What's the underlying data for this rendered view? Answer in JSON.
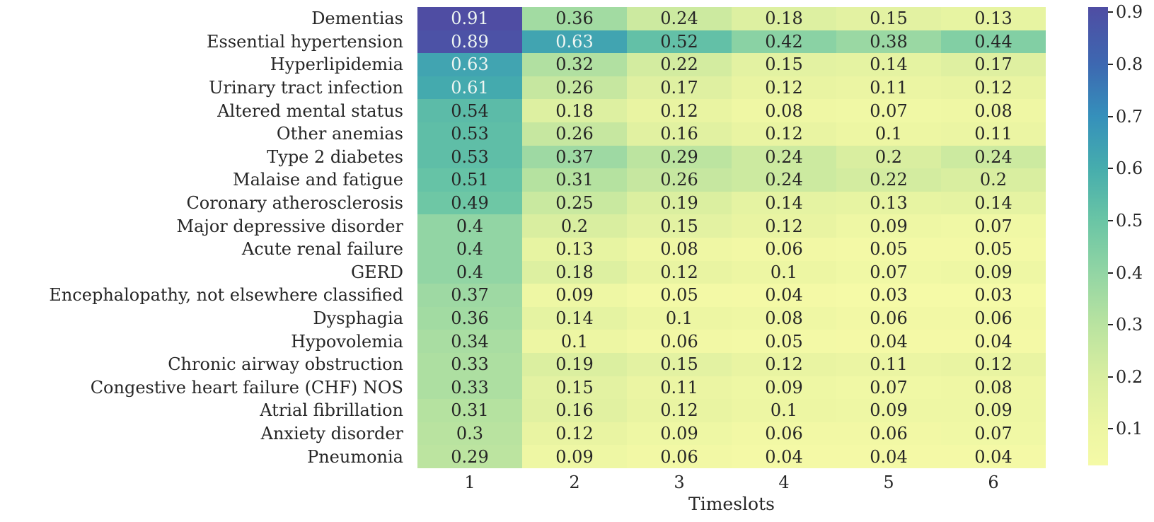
{
  "chart_data": {
    "type": "heatmap",
    "title": "",
    "xlabel": "Timeslots",
    "ylabel": "",
    "x_ticklabels": [
      "1",
      "2",
      "3",
      "4",
      "5",
      "6"
    ],
    "rows": [
      {
        "label": "Dementias",
        "values": [
          0.91,
          0.36,
          0.24,
          0.18,
          0.15,
          0.13
        ]
      },
      {
        "label": "Essential hypertension",
        "values": [
          0.89,
          0.63,
          0.52,
          0.42,
          0.38,
          0.44
        ]
      },
      {
        "label": "Hyperlipidemia",
        "values": [
          0.63,
          0.32,
          0.22,
          0.15,
          0.14,
          0.17
        ]
      },
      {
        "label": "Urinary tract infection",
        "values": [
          0.61,
          0.26,
          0.17,
          0.12,
          0.11,
          0.12
        ]
      },
      {
        "label": "Altered mental status",
        "values": [
          0.54,
          0.18,
          0.12,
          0.08,
          0.07,
          0.08
        ]
      },
      {
        "label": "Other anemias",
        "values": [
          0.53,
          0.26,
          0.16,
          0.12,
          0.1,
          0.11
        ]
      },
      {
        "label": "Type 2 diabetes",
        "values": [
          0.53,
          0.37,
          0.29,
          0.24,
          0.2,
          0.24
        ]
      },
      {
        "label": "Malaise and fatigue",
        "values": [
          0.51,
          0.31,
          0.26,
          0.24,
          0.22,
          0.2
        ]
      },
      {
        "label": "Coronary atherosclerosis",
        "values": [
          0.49,
          0.25,
          0.19,
          0.14,
          0.13,
          0.14
        ]
      },
      {
        "label": "Major depressive disorder",
        "values": [
          0.4,
          0.2,
          0.15,
          0.12,
          0.09,
          0.07
        ]
      },
      {
        "label": "Acute renal failure",
        "values": [
          0.4,
          0.13,
          0.08,
          0.06,
          0.05,
          0.05
        ]
      },
      {
        "label": "GERD",
        "values": [
          0.4,
          0.18,
          0.12,
          0.1,
          0.07,
          0.09
        ]
      },
      {
        "label": "Encephalopathy, not elsewhere classified",
        "values": [
          0.37,
          0.09,
          0.05,
          0.04,
          0.03,
          0.03
        ]
      },
      {
        "label": "Dysphagia",
        "values": [
          0.36,
          0.14,
          0.1,
          0.08,
          0.06,
          0.06
        ]
      },
      {
        "label": "Hypovolemia",
        "values": [
          0.34,
          0.1,
          0.06,
          0.05,
          0.04,
          0.04
        ]
      },
      {
        "label": "Chronic airway obstruction",
        "values": [
          0.33,
          0.19,
          0.15,
          0.12,
          0.11,
          0.12
        ]
      },
      {
        "label": "Congestive heart failure (CHF) NOS",
        "values": [
          0.33,
          0.15,
          0.11,
          0.09,
          0.07,
          0.08
        ]
      },
      {
        "label": "Atrial fibrillation",
        "values": [
          0.31,
          0.16,
          0.12,
          0.1,
          0.09,
          0.09
        ]
      },
      {
        "label": "Anxiety disorder",
        "values": [
          0.3,
          0.12,
          0.09,
          0.06,
          0.06,
          0.07
        ]
      },
      {
        "label": "Pneumonia",
        "values": [
          0.29,
          0.09,
          0.06,
          0.04,
          0.04,
          0.04
        ]
      }
    ],
    "colorbar": {
      "ticks": [
        0.9,
        0.8,
        0.7,
        0.6,
        0.5,
        0.4,
        0.3,
        0.2,
        0.1
      ],
      "vmin": 0.03,
      "vmax": 0.91,
      "position": "right"
    },
    "colormap_stops": [
      {
        "value": 0.03,
        "color": "#f5faa7"
      },
      {
        "value": 0.1,
        "color": "#edf6a3"
      },
      {
        "value": 0.2,
        "color": "#d9eea0"
      },
      {
        "value": 0.3,
        "color": "#b9e3a0"
      },
      {
        "value": 0.4,
        "color": "#92d5a4"
      },
      {
        "value": 0.5,
        "color": "#6ac5a5"
      },
      {
        "value": 0.6,
        "color": "#46adad"
      },
      {
        "value": 0.7,
        "color": "#3590bb"
      },
      {
        "value": 0.8,
        "color": "#3d68b1"
      },
      {
        "value": 0.91,
        "color": "#4f4da3"
      }
    ],
    "annotation_text_colors": {
      "light": "#eef6f2",
      "dark": "#262626"
    },
    "grid": false,
    "legend": false
  }
}
